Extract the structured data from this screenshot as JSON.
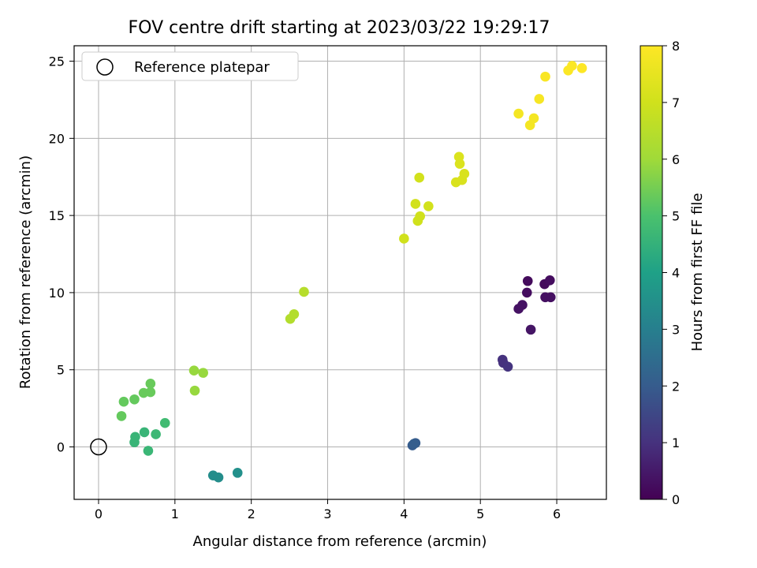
{
  "chart_data": {
    "type": "scatter",
    "title": "FOV centre drift starting at 2023/03/22 19:29:17",
    "xlabel": "Angular distance from reference (arcmin)",
    "ylabel": "Rotation from reference (arcmin)",
    "xlim": [
      -0.32,
      6.65
    ],
    "ylim": [
      -3.4,
      26.0
    ],
    "xticks": [
      0,
      1,
      2,
      3,
      4,
      5,
      6
    ],
    "yticks": [
      0,
      5,
      10,
      15,
      20,
      25
    ],
    "grid": true,
    "legend": {
      "placement": "top-left",
      "entries": [
        "Reference platepar"
      ]
    },
    "reference_point": {
      "x": 0,
      "y": 0
    },
    "colorbar": {
      "label": "Hours from first FF file",
      "range": [
        0,
        8
      ],
      "ticks": [
        0,
        1,
        2,
        3,
        4,
        5,
        6,
        7,
        8
      ],
      "colormap": "viridis"
    },
    "points": [
      {
        "x": 5.62,
        "y": 10.75,
        "h": 0.2
      },
      {
        "x": 5.84,
        "y": 10.55,
        "h": 0.2
      },
      {
        "x": 5.91,
        "y": 10.8,
        "h": 0.25
      },
      {
        "x": 5.61,
        "y": 10.0,
        "h": 0.25
      },
      {
        "x": 5.85,
        "y": 9.7,
        "h": 0.3
      },
      {
        "x": 5.92,
        "y": 9.7,
        "h": 0.3
      },
      {
        "x": 5.55,
        "y": 9.2,
        "h": 0.35
      },
      {
        "x": 5.5,
        "y": 8.95,
        "h": 0.35
      },
      {
        "x": 5.66,
        "y": 7.6,
        "h": 0.4
      },
      {
        "x": 5.29,
        "y": 5.65,
        "h": 1.0
      },
      {
        "x": 5.3,
        "y": 5.45,
        "h": 1.0
      },
      {
        "x": 5.36,
        "y": 5.2,
        "h": 1.05
      },
      {
        "x": 4.11,
        "y": 0.1,
        "h": 2.0
      },
      {
        "x": 4.15,
        "y": 0.25,
        "h": 2.0
      },
      {
        "x": 4.13,
        "y": 0.2,
        "h": 2.05
      },
      {
        "x": 1.5,
        "y": -1.85,
        "h": 3.4
      },
      {
        "x": 1.57,
        "y": -1.98,
        "h": 3.4
      },
      {
        "x": 1.82,
        "y": -1.68,
        "h": 3.5
      },
      {
        "x": 0.47,
        "y": 0.3,
        "h": 4.6
      },
      {
        "x": 0.48,
        "y": 0.65,
        "h": 4.6
      },
      {
        "x": 0.6,
        "y": 0.95,
        "h": 4.6
      },
      {
        "x": 0.65,
        "y": -0.25,
        "h": 4.65
      },
      {
        "x": 0.75,
        "y": 0.82,
        "h": 4.7
      },
      {
        "x": 0.87,
        "y": 1.55,
        "h": 4.8
      },
      {
        "x": 0.3,
        "y": 2.0,
        "h": 5.3
      },
      {
        "x": 0.33,
        "y": 2.93,
        "h": 5.3
      },
      {
        "x": 0.47,
        "y": 3.08,
        "h": 5.3
      },
      {
        "x": 0.59,
        "y": 3.5,
        "h": 5.35
      },
      {
        "x": 0.68,
        "y": 3.55,
        "h": 5.35
      },
      {
        "x": 0.68,
        "y": 4.1,
        "h": 5.35
      },
      {
        "x": 1.26,
        "y": 3.65,
        "h": 5.9
      },
      {
        "x": 1.25,
        "y": 4.95,
        "h": 5.9
      },
      {
        "x": 1.37,
        "y": 4.8,
        "h": 5.9
      },
      {
        "x": 2.51,
        "y": 8.3,
        "h": 6.4
      },
      {
        "x": 2.56,
        "y": 8.6,
        "h": 6.4
      },
      {
        "x": 2.69,
        "y": 10.05,
        "h": 6.45
      },
      {
        "x": 4.0,
        "y": 13.5,
        "h": 7.0
      },
      {
        "x": 4.18,
        "y": 14.65,
        "h": 7.0
      },
      {
        "x": 4.21,
        "y": 14.95,
        "h": 7.0
      },
      {
        "x": 4.15,
        "y": 15.75,
        "h": 7.05
      },
      {
        "x": 4.32,
        "y": 15.6,
        "h": 7.05
      },
      {
        "x": 4.2,
        "y": 17.45,
        "h": 7.05
      },
      {
        "x": 4.68,
        "y": 17.15,
        "h": 7.2
      },
      {
        "x": 4.76,
        "y": 17.3,
        "h": 7.2
      },
      {
        "x": 4.79,
        "y": 17.7,
        "h": 7.2
      },
      {
        "x": 4.73,
        "y": 18.35,
        "h": 7.25
      },
      {
        "x": 4.72,
        "y": 18.8,
        "h": 7.25
      },
      {
        "x": 5.5,
        "y": 21.6,
        "h": 7.8
      },
      {
        "x": 5.65,
        "y": 20.85,
        "h": 7.8
      },
      {
        "x": 5.7,
        "y": 21.3,
        "h": 7.8
      },
      {
        "x": 5.77,
        "y": 22.55,
        "h": 7.85
      },
      {
        "x": 5.85,
        "y": 24.0,
        "h": 7.9
      },
      {
        "x": 6.15,
        "y": 24.4,
        "h": 7.95
      },
      {
        "x": 6.2,
        "y": 24.7,
        "h": 7.95
      },
      {
        "x": 6.33,
        "y": 24.55,
        "h": 8.0
      }
    ]
  }
}
